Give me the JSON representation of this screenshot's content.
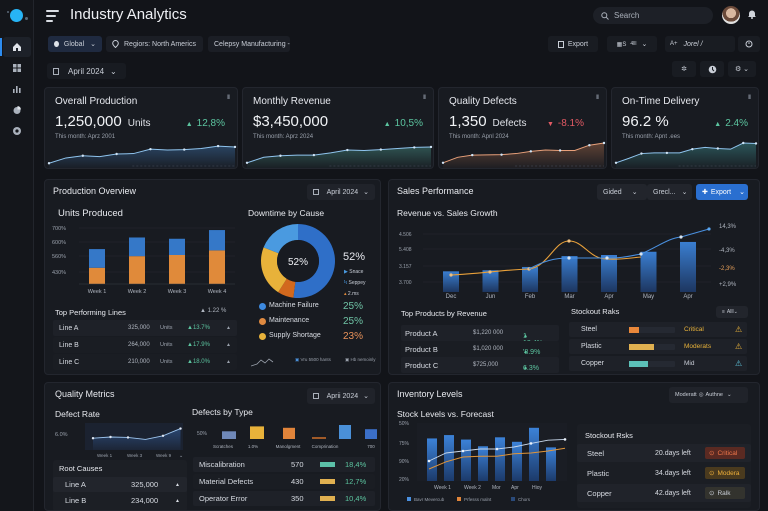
{
  "app": {
    "title": "Industry Analytics",
    "search_placeholder": "Search"
  },
  "sidebar": {
    "items": [
      {
        "icon": "home-icon",
        "active": true
      },
      {
        "icon": "grid-icon"
      },
      {
        "icon": "bar-chart-icon"
      },
      {
        "icon": "pie-chart-icon"
      },
      {
        "icon": "settings-circle-icon"
      }
    ]
  },
  "filters": {
    "global": "Global",
    "region": "Regiors: North Americs",
    "company": "Celepsy Manufacturing",
    "date": "April 2024"
  },
  "toolbar": {
    "export": "Export",
    "view": "4lll",
    "user": "Jorel /"
  },
  "kpis": [
    {
      "title": "Overall Production",
      "value": "1,250,000",
      "unit": "Units",
      "delta": "12,8%",
      "dir": "up",
      "sub": "This month: Aprz 2001",
      "color": "#4a8fd8",
      "points": [
        0.08,
        0.32,
        0.42,
        0.38,
        0.5,
        0.52,
        0.72,
        0.68,
        0.7,
        0.75,
        0.86,
        0.82
      ]
    },
    {
      "title": "Monthly Revenue",
      "value": "$3,450,000",
      "unit": "",
      "delta": "10,5%",
      "dir": "up",
      "sub": "This month: Aprz 2024",
      "color": "#5ab8a8",
      "points": [
        0.1,
        0.35,
        0.42,
        0.45,
        0.45,
        0.55,
        0.68,
        0.66,
        0.7,
        0.75,
        0.8,
        0.82
      ]
    },
    {
      "title": "Quality Defects",
      "value": "1,350",
      "unit": "Defects",
      "delta": "-8.1%",
      "dir": "down",
      "sub": "This month: Apnl 2024",
      "color": "#e08a5a",
      "points": [
        0.1,
        0.35,
        0.45,
        0.46,
        0.47,
        0.52,
        0.62,
        0.68,
        0.66,
        0.66,
        0.9,
        1.0
      ]
    },
    {
      "title": "On-Time Delivery",
      "value": "96.2 %",
      "unit": "",
      "delta": "2.4%",
      "dir": "up",
      "sub": "This month: Apnt .ees",
      "color": "#4fc0c0",
      "points": [
        0.1,
        0.3,
        0.52,
        0.55,
        0.55,
        0.55,
        0.72,
        0.8,
        0.75,
        0.72,
        1.0,
        0.98
      ]
    }
  ],
  "production": {
    "title": "Production Overview",
    "date": "April 2024",
    "units_title": "Units Produced",
    "downtime_title": "Downtime by Cause",
    "top_lines_title": "Top Performing Lines",
    "top_lines_delta": "1.22 %",
    "lines": [
      {
        "name": "Line A",
        "units": "325,000",
        "unit": "Units",
        "delta": "13.7%"
      },
      {
        "name": "Line B",
        "units": "264,000",
        "unit": "Units",
        "delta": "17.9%"
      },
      {
        "name": "Line C",
        "units": "210,000",
        "unit": "Units",
        "delta": "18.0%"
      }
    ],
    "donut_center": "52%",
    "donut_side_value": "52%",
    "donut_legend_small": [
      "Snace",
      "Seppey",
      "2.ms"
    ],
    "causes": [
      {
        "name": "Machine Failure",
        "value": "25%",
        "color": "#3d8ae0",
        "value_color": "#6fc3a5"
      },
      {
        "name": "Maintenance",
        "value": "25%",
        "color": "#e08a40",
        "value_color": "#6fc3a5"
      },
      {
        "name": "Supply Shortage",
        "value": "23%",
        "color": "#e8b23a",
        "value_color": "#e8925a"
      }
    ],
    "footer": [
      "Vru 5500 hants",
      "Hb nemoinly"
    ]
  },
  "sales": {
    "title": "Sales Performance",
    "filter1": "Gided",
    "filter2": "Grecl...",
    "export": "Export",
    "chart_title": "Revenue vs. Sales Growth",
    "products_title": "Top Products by Revenue",
    "products": [
      {
        "name": "Product A",
        "revenue": "$1,220 000",
        "delta": "1 12.4%"
      },
      {
        "name": "Product B",
        "revenue": "$1,020 000",
        "delta": "'8.9%"
      },
      {
        "name": "Product C",
        "revenue": "$725,000",
        "delta": "6.3%"
      }
    ],
    "stockout_title": "Stockout Raks",
    "stockout_filter": "Alll",
    "stockout": [
      {
        "name": "Steel",
        "level": 0.22,
        "color": "#e8873a",
        "status": "Critical",
        "status_color": "#e8b23a",
        "icon_color": "#e8b23a"
      },
      {
        "name": "Plastic",
        "level": 0.55,
        "color": "#e0b050",
        "status": "Moderats",
        "status_color": "#e8b23a",
        "icon_color": "#e8b23a"
      },
      {
        "name": "Copper",
        "level": 0.42,
        "color": "#5cc0b8",
        "status": "Mid",
        "status_color": "#c9ced7",
        "icon_color": "#5cc0d8"
      }
    ]
  },
  "quality": {
    "title": "Quality Metrics",
    "date": "Aprii 2024",
    "defect_rate_title": "Defect Rate",
    "defects_type_title": "Defects by Type",
    "root_causes_title": "Root Causes",
    "root_causes": [
      {
        "name": "Line A",
        "value": "325,000"
      },
      {
        "name": "Line B",
        "value": "234,000"
      }
    ],
    "defects": [
      {
        "name": "Miscalibration",
        "count": "570",
        "pct": "18,4%",
        "color": "#5cc0a8"
      },
      {
        "name": "Material Defects",
        "count": "430",
        "pct": "12,7%",
        "color": "#e0b050"
      },
      {
        "name": "Operator Error",
        "count": "350",
        "pct": "10,4%",
        "color": "#e0b050"
      }
    ]
  },
  "inventory": {
    "title": "Inventory Levels",
    "filter_label": "Moderatt",
    "filter_value": "Authne",
    "chart_title": "Stock Levels vs. Forecast",
    "risks_title": "Stockout Rsks",
    "risks": [
      {
        "name": "Steel",
        "days": "20.days left",
        "status": "Critical",
        "bg": "#5a2a22",
        "fg": "#f0774a"
      },
      {
        "name": "Plastic",
        "days": "34.days left",
        "status": "Modera",
        "bg": "#4a3a1e",
        "fg": "#f0b03a"
      },
      {
        "name": "Copper",
        "days": "42.days left",
        "status": "Ralk",
        "bg": "#33332e",
        "fg": "#c9ced7"
      }
    ]
  },
  "chart_data": [
    {
      "type": "bar",
      "title": "Units Produced",
      "categories": [
        "Week 1",
        "Week 2",
        "Week 3",
        "Week 4"
      ],
      "yticks": [
        "700%",
        "600%",
        "560%",
        "430%"
      ],
      "series": [
        {
          "name": "Base",
          "color": "#e08a3a",
          "values": [
            0.28,
            0.48,
            0.5,
            0.58
          ]
        },
        {
          "name": "Top",
          "color": "#3578c8",
          "values": [
            0.46,
            0.46,
            0.4,
            0.5
          ]
        }
      ]
    },
    {
      "type": "pie",
      "title": "Downtime by Cause",
      "values": [
        52,
        22,
        7,
        19
      ],
      "colors": [
        "#2f6fc8",
        "#e8b23a",
        "#d2691e",
        "#4a9ae0"
      ],
      "center": "52%"
    },
    {
      "type": "bar",
      "title": "Revenue vs. Sales Growth",
      "categories": [
        "Dec",
        "Jun",
        "Feb",
        "Mar",
        "Apr",
        "May",
        "Apr"
      ],
      "yticks_left": [
        "4.506",
        "5.408",
        "3.157",
        "3.700"
      ],
      "yticks_right": [
        "14,3%",
        "-4,3%",
        "-2,3%",
        "+2,9%"
      ],
      "bars": [
        0.38,
        0.4,
        0.46,
        0.66,
        0.68,
        0.74,
        0.92
      ],
      "line_orange": [
        0.26,
        0.32,
        0.4,
        0.88,
        0.58,
        0.6
      ],
      "line_blue": [
        0.4,
        0.6,
        0.6,
        0.66,
        0.9,
        1.05
      ]
    },
    {
      "type": "line",
      "title": "Defect Rate",
      "categories": [
        "Week 1",
        "Week 3",
        "Week 9"
      ],
      "ytick": "6.0%",
      "values": [
        0.45,
        0.5,
        0.48,
        0.4,
        0.55,
        0.85
      ]
    },
    {
      "type": "bar",
      "title": "Defects by Type",
      "ytick": "50%",
      "categories": [
        "Scratches",
        "1.0%",
        "Manolgment",
        "Comprination",
        "700"
      ],
      "values": [
        0.55,
        0.9,
        0.8,
        0.1,
        1.0,
        0.7
      ],
      "colors": [
        "#6f88b8",
        "#e8b23a",
        "#e0843a",
        "#a05a28",
        "#4a90d8",
        "#3b6fc8"
      ]
    },
    {
      "type": "bar",
      "title": "Stock Levels vs. Forecast",
      "categories": [
        "Week 1",
        "Week 2",
        "Mor",
        "Apr",
        "Hioy"
      ],
      "yticks": [
        "50%",
        "75%",
        "90%",
        "20%"
      ],
      "bars": [
        0.76,
        0.82,
        0.74,
        0.62,
        0.78,
        0.7,
        0.95,
        0.6
      ],
      "line_white": [
        0.3,
        0.5,
        0.55,
        0.6,
        0.6,
        0.65,
        0.74,
        0.82,
        0.84
      ],
      "line_orange": [
        0.2,
        0.38,
        0.5,
        0.52,
        0.52,
        0.58,
        0.6,
        0.65,
        0.72
      ],
      "legend": [
        "Bavr Mevercub",
        "Prfesss malnt",
        "Chors"
      ]
    }
  ]
}
